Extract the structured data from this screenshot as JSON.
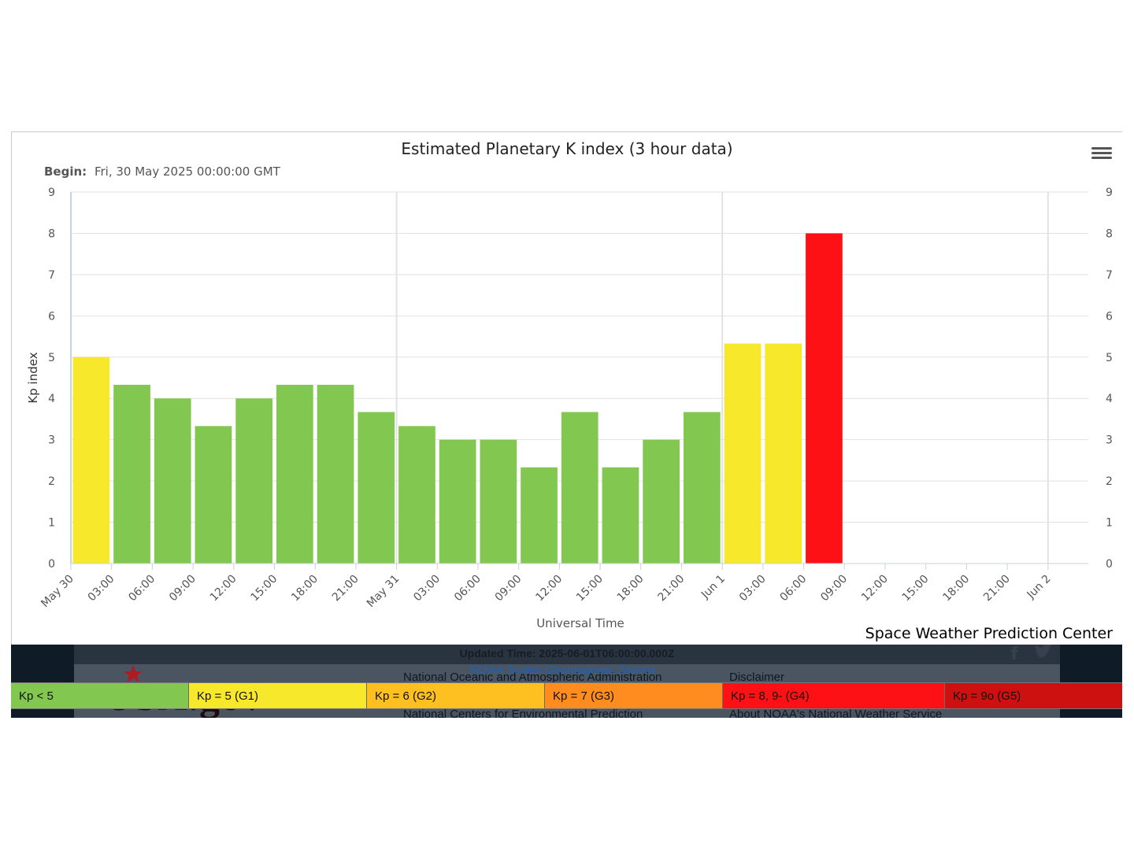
{
  "chart_data": {
    "type": "bar",
    "title": "Estimated Planetary K index (3 hour data)",
    "subtitle_label": "Begin:",
    "subtitle_value": "Fri, 30 May 2025 00:00:00 GMT",
    "xlabel": "Universal Time",
    "ylabel": "Kp index",
    "ylim": [
      0,
      9
    ],
    "y_ticks": [
      "0",
      "1",
      "2",
      "3",
      "4",
      "5",
      "6",
      "7",
      "8",
      "9"
    ],
    "x_ticks": [
      "May 30",
      "03:00",
      "06:00",
      "09:00",
      "12:00",
      "15:00",
      "18:00",
      "21:00",
      "May 31",
      "03:00",
      "06:00",
      "09:00",
      "12:00",
      "15:00",
      "18:00",
      "21:00",
      "Jun 1",
      "03:00",
      "06:00",
      "09:00",
      "12:00",
      "15:00",
      "18:00",
      "21:00",
      "Jun 2"
    ],
    "categories": [
      "May 30 00:00",
      "May 30 03:00",
      "May 30 06:00",
      "May 30 09:00",
      "May 30 12:00",
      "May 30 15:00",
      "May 30 18:00",
      "May 30 21:00",
      "May 31 00:00",
      "May 31 03:00",
      "May 31 06:00",
      "May 31 09:00",
      "May 31 12:00",
      "May 31 15:00",
      "May 31 18:00",
      "May 31 21:00",
      "Jun 1 00:00",
      "Jun 1 03:00",
      "Jun 1 06:00"
    ],
    "values": [
      5.0,
      4.33,
      4.0,
      3.33,
      4.0,
      4.33,
      4.33,
      3.67,
      3.33,
      3.0,
      3.0,
      2.33,
      3.67,
      2.33,
      3.0,
      3.67,
      5.33,
      5.33,
      8.0
    ],
    "bar_colors": [
      "#f7e82c",
      "#82c850",
      "#82c850",
      "#82c850",
      "#82c850",
      "#82c850",
      "#82c850",
      "#82c850",
      "#82c850",
      "#82c850",
      "#82c850",
      "#82c850",
      "#82c850",
      "#82c850",
      "#82c850",
      "#82c850",
      "#f7e82c",
      "#f7e82c",
      "#fe1114"
    ],
    "grid": true,
    "right_axis_mirror": true,
    "legend": "none"
  },
  "footer": {
    "credit": "Space Weather Prediction Center",
    "updated": "Updated Time: 2025-06-01T06:00:00.000Z",
    "noaa_scales_link": "NOAA Scales Geomagnetic Storms",
    "links": [
      "National Oceanic and Atmospheric Administration",
      "National Centers for Environmental Prediction",
      "Disclaimer",
      "About NOAA's National Weather Service"
    ],
    "usa_gov": "USA.gov",
    "social_icons": [
      "facebook-icon",
      "twitter-icon"
    ]
  },
  "scale_legend": [
    {
      "label": "Kp < 5",
      "color": "#82c850"
    },
    {
      "label": "Kp = 5 (G1)",
      "color": "#f7e82c"
    },
    {
      "label": "Kp = 6 (G2)",
      "color": "#fec020"
    },
    {
      "label": "Kp = 7 (G3)",
      "color": "#ff8c1f"
    },
    {
      "label": "Kp = 8, 9- (G4)",
      "color": "#fe1114"
    },
    {
      "label": "Kp = 9o (G5)",
      "color": "#cc1110"
    }
  ],
  "menu_icon": "hamburger-menu-icon"
}
